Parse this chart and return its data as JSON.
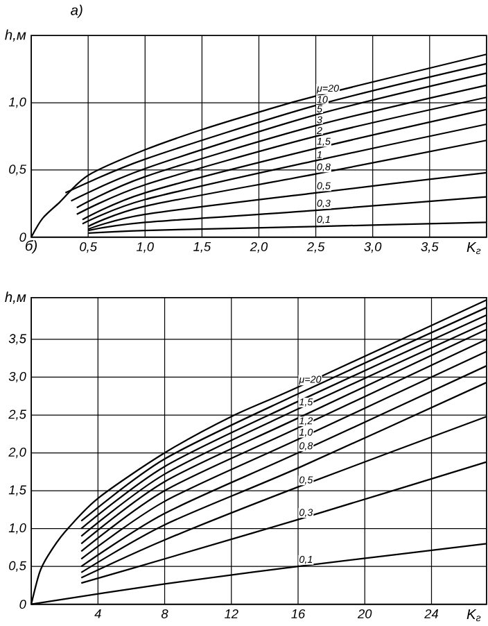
{
  "chart_data": [
    {
      "type": "line",
      "title": "а)",
      "xlabel": "K$_{г}$",
      "ylabel": "h,м",
      "xlim": [
        0,
        4.0
      ],
      "ylim": [
        0,
        1.5
      ],
      "grid": true,
      "marker": "none",
      "xticks": [
        {
          "value": 0.5,
          "label": "0,5"
        },
        {
          "value": 1.0,
          "label": "1,0"
        },
        {
          "value": 1.5,
          "label": "1,5"
        },
        {
          "value": 2.0,
          "label": "2,0"
        },
        {
          "value": 2.5,
          "label": "2,5"
        },
        {
          "value": 3.0,
          "label": "3,0"
        },
        {
          "value": 3.5,
          "label": "3,5"
        }
      ],
      "yticks": [
        0,
        {
          "value": 0.5,
          "label": "0,5"
        },
        {
          "value": 1.0,
          "label": "1,0"
        }
      ],
      "series": [
        {
          "name": "μ=20",
          "color": "#000000",
          "x": [
            0,
            0.1,
            0.25,
            0.5,
            1.0,
            1.5,
            2.0,
            2.5,
            4.0
          ],
          "values": [
            0,
            0.14,
            0.26,
            0.46,
            0.65,
            0.8,
            0.93,
            1.05,
            1.36
          ]
        },
        {
          "name": "10",
          "color": "#000000",
          "x": [
            0.3,
            1.0,
            2.5,
            4.0
          ],
          "values": [
            0.33,
            0.58,
            0.98,
            1.29
          ]
        },
        {
          "name": "5",
          "color": "#000000",
          "x": [
            0.35,
            1.0,
            2.5,
            4.0
          ],
          "values": [
            0.27,
            0.51,
            0.91,
            1.22
          ]
        },
        {
          "name": "3",
          "color": "#000000",
          "x": [
            0.4,
            1.0,
            2.5,
            4.0
          ],
          "values": [
            0.22,
            0.45,
            0.83,
            1.13
          ]
        },
        {
          "name": "2",
          "color": "#000000",
          "x": [
            0.4,
            1.0,
            2.5,
            4.0
          ],
          "values": [
            0.17,
            0.39,
            0.75,
            1.04
          ]
        },
        {
          "name": "1,5",
          "color": "#000000",
          "x": [
            0.45,
            1.0,
            2.5,
            4.0
          ],
          "values": [
            0.13,
            0.33,
            0.66,
            0.95
          ]
        },
        {
          "name": "1",
          "color": "#000000",
          "x": [
            0.45,
            1.0,
            2.5,
            4.0
          ],
          "values": [
            0.1,
            0.28,
            0.57,
            0.84
          ]
        },
        {
          "name": "0,8",
          "color": "#000000",
          "x": [
            0.5,
            1.0,
            2.5,
            4.0
          ],
          "values": [
            0.08,
            0.23,
            0.47,
            0.72
          ]
        },
        {
          "name": "0,5",
          "color": "#000000",
          "x": [
            0.5,
            1.0,
            2.5,
            4.0
          ],
          "values": [
            0.06,
            0.17,
            0.33,
            0.48
          ]
        },
        {
          "name": "0,3",
          "color": "#000000",
          "x": [
            0.5,
            1.0,
            2.5,
            4.0
          ],
          "values": [
            0.05,
            0.11,
            0.2,
            0.3
          ]
        },
        {
          "name": "0,1",
          "color": "#000000",
          "x": [
            0.5,
            1.0,
            2.5,
            4.0
          ],
          "values": [
            0.03,
            0.05,
            0.08,
            0.11
          ]
        }
      ]
    },
    {
      "type": "line",
      "title": "б)",
      "xlabel": "K$_{г}$",
      "ylabel": "h,м",
      "xlim": [
        0,
        27.3
      ],
      "ylim": [
        0,
        4.05
      ],
      "grid": true,
      "marker": "none",
      "xticks": [
        4,
        8,
        12,
        16,
        20,
        24
      ],
      "yticks": [
        0,
        {
          "value": 0.5,
          "label": "0,5"
        },
        {
          "value": 1.0,
          "label": "1,0"
        },
        {
          "value": 1.5,
          "label": "1,5"
        },
        {
          "value": 2.0,
          "label": "2,0"
        },
        {
          "value": 2.5,
          "label": "2,5"
        },
        {
          "value": 3.0,
          "label": "3,0"
        },
        {
          "value": 3.5,
          "label": "3,5"
        }
      ],
      "series": [
        {
          "name": "μ=20",
          "color": "#000000",
          "x": [
            0,
            0.5,
            1,
            2,
            4,
            8,
            12,
            16,
            27.3
          ],
          "values": [
            0,
            0.42,
            0.64,
            0.95,
            1.4,
            2.0,
            2.48,
            2.87,
            4.02
          ]
        },
        {
          "color": "#000000",
          "x": [
            3,
            8,
            16,
            27.3
          ],
          "values": [
            1.1,
            1.92,
            2.78,
            3.92
          ]
        },
        {
          "color": "#000000",
          "x": [
            3,
            8,
            16,
            27.3
          ],
          "values": [
            1.0,
            1.82,
            2.68,
            3.82
          ]
        },
        {
          "name": "1,5",
          "color": "#000000",
          "x": [
            3,
            8,
            16,
            27.3
          ],
          "values": [
            0.9,
            1.72,
            2.58,
            3.72
          ]
        },
        {
          "color": "#000000",
          "x": [
            3,
            8,
            16,
            27.3
          ],
          "values": [
            0.8,
            1.62,
            2.46,
            3.63
          ]
        },
        {
          "name": "1,2",
          "color": "#000000",
          "x": [
            3,
            8,
            16,
            27.3
          ],
          "values": [
            0.7,
            1.5,
            2.33,
            3.5
          ]
        },
        {
          "name": "1,0",
          "color": "#000000",
          "x": [
            3,
            8,
            16,
            27.3
          ],
          "values": [
            0.6,
            1.36,
            2.18,
            3.34
          ]
        },
        {
          "name": "0,8",
          "color": "#000000",
          "x": [
            3,
            8,
            16,
            27.3
          ],
          "values": [
            0.5,
            1.2,
            2.0,
            3.15
          ]
        },
        {
          "color": "#000000",
          "x": [
            3,
            8,
            16,
            27.3
          ],
          "values": [
            0.42,
            1.05,
            1.8,
            2.93
          ]
        },
        {
          "name": "0,5",
          "color": "#000000",
          "x": [
            3,
            8,
            16,
            27.3
          ],
          "values": [
            0.35,
            0.85,
            1.55,
            2.48
          ]
        },
        {
          "name": "0,3",
          "color": "#000000",
          "x": [
            3,
            8,
            16,
            27.3
          ],
          "values": [
            0.28,
            0.6,
            1.12,
            1.88
          ]
        },
        {
          "name": "0,1",
          "color": "#000000",
          "x": [
            0,
            8,
            16,
            27.3
          ],
          "values": [
            0,
            0.27,
            0.5,
            0.8
          ]
        }
      ]
    }
  ]
}
